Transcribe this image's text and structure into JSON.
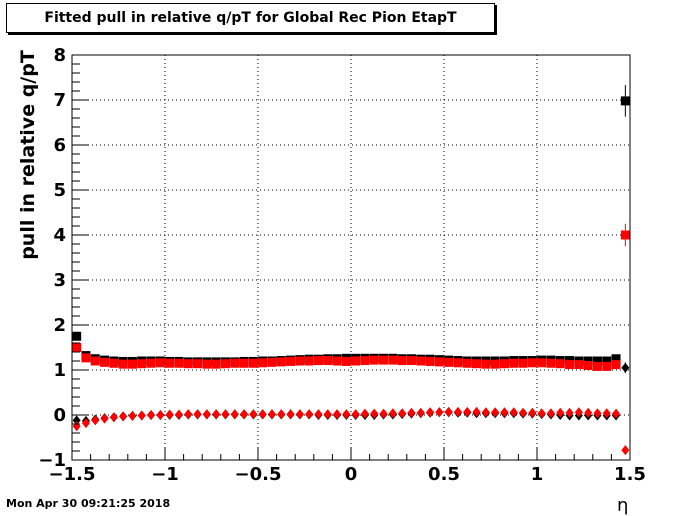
{
  "title": "Fitted pull in relative q/pT for Global Rec Pion EtapT",
  "footer": {
    "datestamp": "Mon Apr 30 09:21:25 2018"
  },
  "colors": {
    "black_series": "#000000",
    "red_series": "#ff0000",
    "grid": "#000000"
  },
  "chart_data": {
    "type": "scatter",
    "title": "Fitted pull in relative q/pT for Global Rec Pion EtapT",
    "xlabel": "η",
    "ylabel": "pull in relative q/pT",
    "xlim": [
      -1.5,
      1.5
    ],
    "ylim": [
      -1,
      8
    ],
    "grid": true,
    "x_ticks": [
      -1.5,
      -1,
      -0.5,
      0,
      0.5,
      1,
      1.5
    ],
    "x_tick_labels": [
      "−1.5",
      "−1",
      "−0.5",
      "0",
      "0.5",
      "1",
      "1.5"
    ],
    "y_ticks": [
      -1,
      0,
      1,
      2,
      3,
      4,
      5,
      6,
      7,
      8
    ],
    "y_tick_labels": [
      "−1",
      "0",
      "1",
      "2",
      "3",
      "4",
      "5",
      "6",
      "7",
      "8"
    ],
    "x": [
      -1.475,
      -1.425,
      -1.375,
      -1.325,
      -1.275,
      -1.225,
      -1.175,
      -1.125,
      -1.075,
      -1.025,
      -0.975,
      -0.925,
      -0.875,
      -0.825,
      -0.775,
      -0.725,
      -0.675,
      -0.625,
      -0.575,
      -0.525,
      -0.475,
      -0.425,
      -0.375,
      -0.325,
      -0.275,
      -0.225,
      -0.175,
      -0.125,
      -0.075,
      -0.025,
      0.025,
      0.075,
      0.125,
      0.175,
      0.225,
      0.275,
      0.325,
      0.375,
      0.425,
      0.475,
      0.525,
      0.575,
      0.625,
      0.675,
      0.725,
      0.775,
      0.825,
      0.875,
      0.925,
      0.975,
      1.025,
      1.075,
      1.125,
      1.175,
      1.225,
      1.275,
      1.325,
      1.375,
      1.425,
      1.475
    ],
    "series": [
      {
        "marker": "square",
        "color": "#000000",
        "values": [
          1.75,
          1.32,
          1.25,
          1.22,
          1.2,
          1.19,
          1.19,
          1.2,
          1.2,
          1.2,
          1.19,
          1.19,
          1.18,
          1.18,
          1.18,
          1.18,
          1.18,
          1.18,
          1.19,
          1.19,
          1.2,
          1.2,
          1.21,
          1.22,
          1.23,
          1.24,
          1.24,
          1.25,
          1.25,
          1.26,
          1.26,
          1.26,
          1.26,
          1.26,
          1.26,
          1.25,
          1.25,
          1.24,
          1.24,
          1.23,
          1.22,
          1.21,
          1.2,
          1.2,
          1.2,
          1.2,
          1.2,
          1.21,
          1.21,
          1.21,
          1.22,
          1.22,
          1.21,
          1.21,
          1.2,
          1.2,
          1.2,
          1.2,
          1.25,
          6.98
        ],
        "errors": [
          0,
          0,
          0,
          0,
          0,
          0,
          0,
          0,
          0,
          0,
          0,
          0,
          0,
          0,
          0,
          0,
          0,
          0,
          0,
          0,
          0,
          0,
          0,
          0,
          0,
          0,
          0,
          0,
          0,
          0,
          0,
          0,
          0,
          0,
          0,
          0,
          0,
          0,
          0,
          0,
          0,
          0,
          0,
          0,
          0,
          0,
          0,
          0,
          0,
          0,
          0,
          0,
          0,
          0,
          0,
          0,
          0,
          0,
          0,
          0.35
        ]
      },
      {
        "marker": "square",
        "color": "#ff0000",
        "values": [
          1.5,
          1.27,
          1.2,
          1.17,
          1.15,
          1.13,
          1.13,
          1.14,
          1.15,
          1.16,
          1.15,
          1.15,
          1.14,
          1.14,
          1.13,
          1.13,
          1.14,
          1.15,
          1.15,
          1.15,
          1.16,
          1.17,
          1.18,
          1.19,
          1.2,
          1.2,
          1.21,
          1.21,
          1.2,
          1.19,
          1.2,
          1.21,
          1.22,
          1.22,
          1.22,
          1.21,
          1.21,
          1.2,
          1.19,
          1.18,
          1.17,
          1.16,
          1.15,
          1.14,
          1.13,
          1.13,
          1.14,
          1.15,
          1.15,
          1.16,
          1.16,
          1.15,
          1.14,
          1.12,
          1.12,
          1.1,
          1.08,
          1.08,
          1.12,
          4.0
        ],
        "errors": [
          0,
          0,
          0,
          0,
          0,
          0,
          0,
          0,
          0,
          0,
          0,
          0,
          0,
          0,
          0,
          0,
          0,
          0,
          0,
          0,
          0,
          0,
          0,
          0,
          0,
          0,
          0,
          0,
          0,
          0,
          0,
          0,
          0,
          0,
          0,
          0,
          0,
          0,
          0,
          0,
          0,
          0,
          0,
          0,
          0,
          0,
          0,
          0,
          0,
          0,
          0,
          0,
          0,
          0,
          0,
          0,
          0,
          0,
          0,
          0.25
        ]
      },
      {
        "marker": "diamond",
        "color": "#000000",
        "values": [
          -0.12,
          -0.13,
          -0.1,
          -0.07,
          -0.05,
          -0.03,
          -0.02,
          -0.01,
          0.0,
          0.0,
          0.0,
          0.0,
          0.01,
          0.01,
          0.01,
          0.01,
          0.01,
          0.01,
          0.01,
          0.01,
          0.01,
          0.01,
          0.01,
          0.01,
          0.01,
          0.01,
          0.0,
          0.0,
          0.0,
          0.0,
          0.0,
          0.0,
          0.0,
          0.01,
          0.01,
          0.02,
          0.03,
          0.04,
          0.05,
          0.06,
          0.06,
          0.05,
          0.05,
          0.04,
          0.04,
          0.04,
          0.04,
          0.04,
          0.03,
          0.03,
          0.02,
          0.01,
          0.0,
          -0.01,
          -0.01,
          -0.01,
          -0.01,
          -0.01,
          -0.01,
          1.05
        ],
        "errors": [
          0,
          0,
          0,
          0,
          0,
          0,
          0,
          0,
          0,
          0,
          0,
          0,
          0,
          0,
          0,
          0,
          0,
          0,
          0,
          0,
          0,
          0,
          0,
          0,
          0,
          0,
          0,
          0,
          0,
          0,
          0,
          0,
          0,
          0,
          0,
          0,
          0,
          0,
          0,
          0,
          0,
          0,
          0,
          0,
          0,
          0,
          0,
          0,
          0,
          0,
          0,
          0,
          0,
          0,
          0,
          0,
          0,
          0,
          0,
          0.12
        ]
      },
      {
        "marker": "diamond",
        "color": "#ff0000",
        "values": [
          -0.25,
          -0.18,
          -0.12,
          -0.08,
          -0.05,
          -0.03,
          -0.02,
          -0.01,
          0.0,
          0.0,
          0.01,
          0.01,
          0.02,
          0.02,
          0.02,
          0.02,
          0.02,
          0.02,
          0.02,
          0.02,
          0.02,
          0.02,
          0.02,
          0.02,
          0.02,
          0.02,
          0.02,
          0.02,
          0.02,
          0.02,
          0.02,
          0.03,
          0.03,
          0.03,
          0.04,
          0.04,
          0.05,
          0.05,
          0.06,
          0.06,
          0.07,
          0.07,
          0.07,
          0.07,
          0.06,
          0.06,
          0.06,
          0.06,
          0.05,
          0.05,
          0.04,
          0.04,
          0.05,
          0.05,
          0.06,
          0.05,
          0.04,
          0.04,
          0.03,
          -0.78
        ],
        "errors": [
          0,
          0,
          0,
          0,
          0,
          0,
          0,
          0,
          0,
          0,
          0,
          0,
          0,
          0,
          0,
          0,
          0,
          0,
          0,
          0,
          0,
          0,
          0,
          0,
          0,
          0,
          0,
          0,
          0,
          0,
          0,
          0,
          0,
          0,
          0,
          0,
          0,
          0,
          0,
          0,
          0,
          0,
          0,
          0,
          0,
          0,
          0,
          0,
          0,
          0,
          0,
          0,
          0,
          0,
          0,
          0,
          0,
          0,
          0,
          0.1
        ]
      }
    ]
  }
}
